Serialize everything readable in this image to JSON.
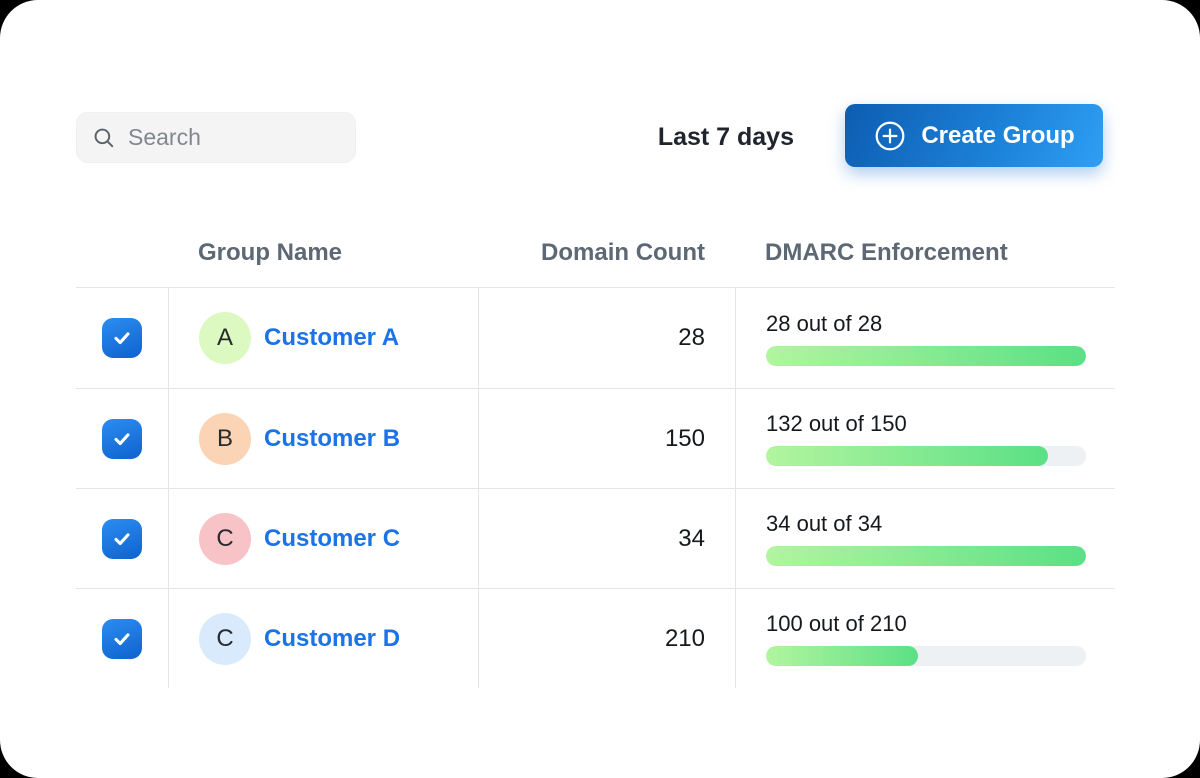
{
  "page": {
    "background_color": "#000000",
    "card_color": "#ffffff"
  },
  "toolbar": {
    "search": {
      "placeholder": "Search"
    },
    "date_range": "Last 7 days",
    "create_group": {
      "label": "Create Group"
    }
  },
  "colors": {
    "accent_blue": "#1a73e8",
    "button_gradient": [
      "#0d5db1",
      "#2e9ff5"
    ],
    "checkbox_blue": "#1567d2",
    "progress_gradient": [
      "#b2f59f",
      "#5be085"
    ],
    "progress_track": "#eef1f4",
    "table_border": "#e3e6e9",
    "header_text": "#5d6874"
  },
  "table": {
    "columns": [
      "Group Name",
      "Domain Count",
      "DMARC Enforcement"
    ],
    "rows": [
      {
        "checked": true,
        "avatar_letter": "A",
        "avatar_color": "#ddf9c2",
        "name": "Customer A",
        "domain_count": "28",
        "enforcement_label": "28 out of 28",
        "enforced": 28,
        "total": 28
      },
      {
        "checked": true,
        "avatar_letter": "B",
        "avatar_color": "#fad4b4",
        "name": "Customer B",
        "domain_count": "150",
        "enforcement_label": "132 out of 150",
        "enforced": 132,
        "total": 150
      },
      {
        "checked": true,
        "avatar_letter": "C",
        "avatar_color": "#f8c3c6",
        "name": "Customer C",
        "domain_count": "34",
        "enforcement_label": "34 out of 34",
        "enforced": 34,
        "total": 34
      },
      {
        "checked": true,
        "avatar_letter": "C",
        "avatar_color": "#d8eafb",
        "name": "Customer D",
        "domain_count": "210",
        "enforcement_label": "100 out of 210",
        "enforced": 100,
        "total": 210
      }
    ]
  }
}
